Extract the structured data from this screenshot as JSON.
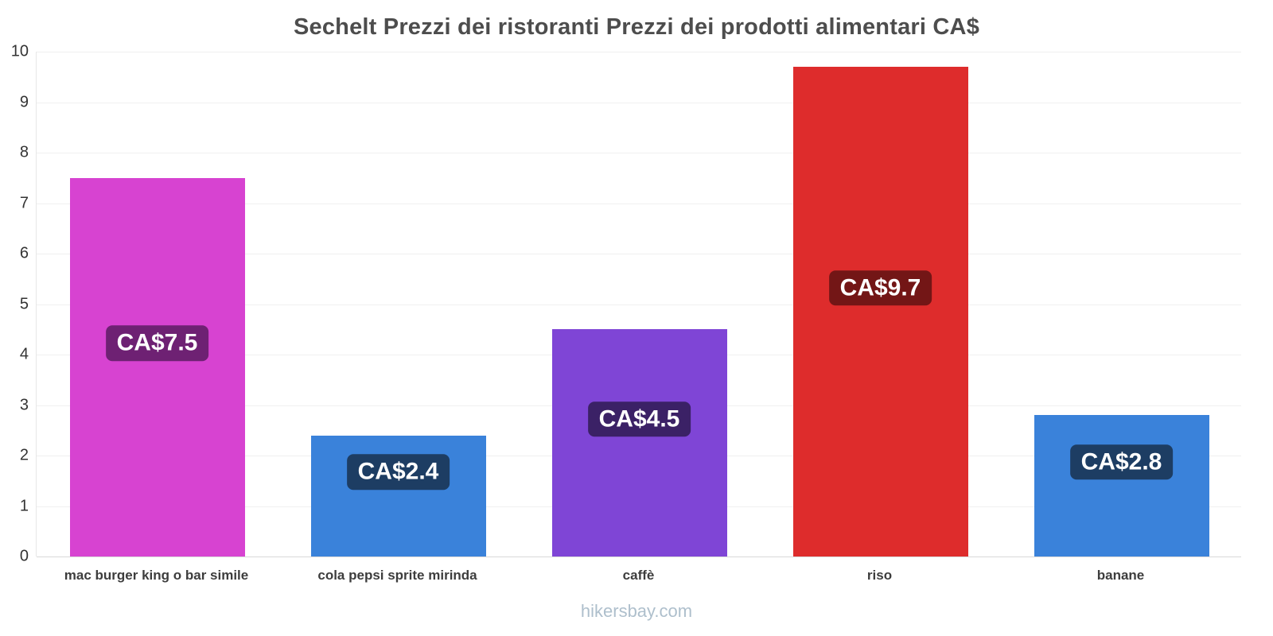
{
  "title": "Sechelt Prezzi dei ristoranti Prezzi dei prodotti alimentari CA$",
  "footer": "hikersbay.com",
  "chart_data": {
    "type": "bar",
    "title": "Sechelt Prezzi dei ristoranti Prezzi dei prodotti alimentari CA$",
    "categories": [
      "mac burger king o bar simile",
      "cola pepsi sprite mirinda",
      "caffè",
      "riso",
      "banane"
    ],
    "values": [
      7.5,
      2.4,
      4.5,
      9.7,
      2.8
    ],
    "value_labels": [
      "CA$7.5",
      "CA$2.4",
      "CA$4.5",
      "CA$9.7",
      "CA$2.8"
    ],
    "bar_colors": [
      "#d743d1",
      "#3a82da",
      "#7f45d6",
      "#de2c2c",
      "#3a82da"
    ],
    "label_bg_colors": [
      "#6e2173",
      "#1d3d63",
      "#3b2166",
      "#731616",
      "#1d3d63"
    ],
    "xlabel": "",
    "ylabel": "",
    "ylim": [
      0,
      10
    ],
    "yticks": [
      0,
      1,
      2,
      3,
      4,
      5,
      6,
      7,
      8,
      9,
      10
    ],
    "grid": true,
    "legend_position": "none"
  }
}
